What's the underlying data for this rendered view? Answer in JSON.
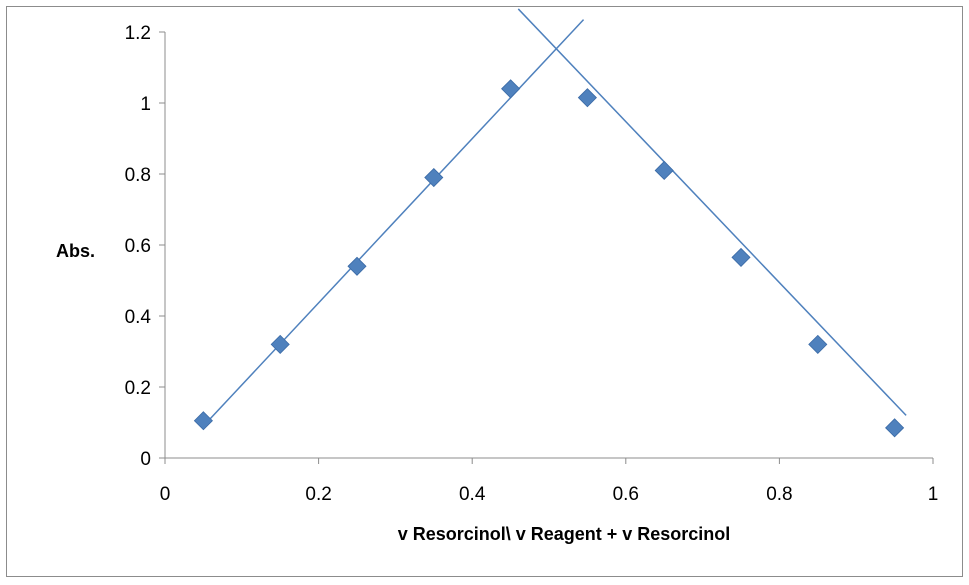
{
  "chart_data": {
    "type": "scatter",
    "xlabel": "v Resorcinol\\ v Reagent + v Resorcinol",
    "ylabel": "Abs.",
    "xlim": [
      0,
      1
    ],
    "ylim": [
      0,
      1.2
    ],
    "x_ticks": [
      "0",
      "0.2",
      "0.4",
      "0.6",
      "0.8",
      "1"
    ],
    "y_ticks": [
      "0",
      "0.2",
      "0.4",
      "0.6",
      "0.8",
      "1",
      "1.2"
    ],
    "grid": false,
    "legend": "none",
    "marker_color": "#4f81bd",
    "line_color": "#4f81bd",
    "series": [
      {
        "x": [
          0.05,
          0.15,
          0.25,
          0.35,
          0.45,
          0.55,
          0.65,
          0.75,
          0.85,
          0.95
        ],
        "y": [
          0.105,
          0.32,
          0.54,
          0.79,
          1.04,
          1.015,
          0.81,
          0.565,
          0.32,
          0.085
        ]
      }
    ],
    "trendlines": [
      {
        "x": [
          0.05,
          0.545
        ],
        "y": [
          0.09,
          1.235
        ]
      },
      {
        "x": [
          0.46,
          0.965
        ],
        "y": [
          1.265,
          0.12
        ]
      }
    ]
  }
}
